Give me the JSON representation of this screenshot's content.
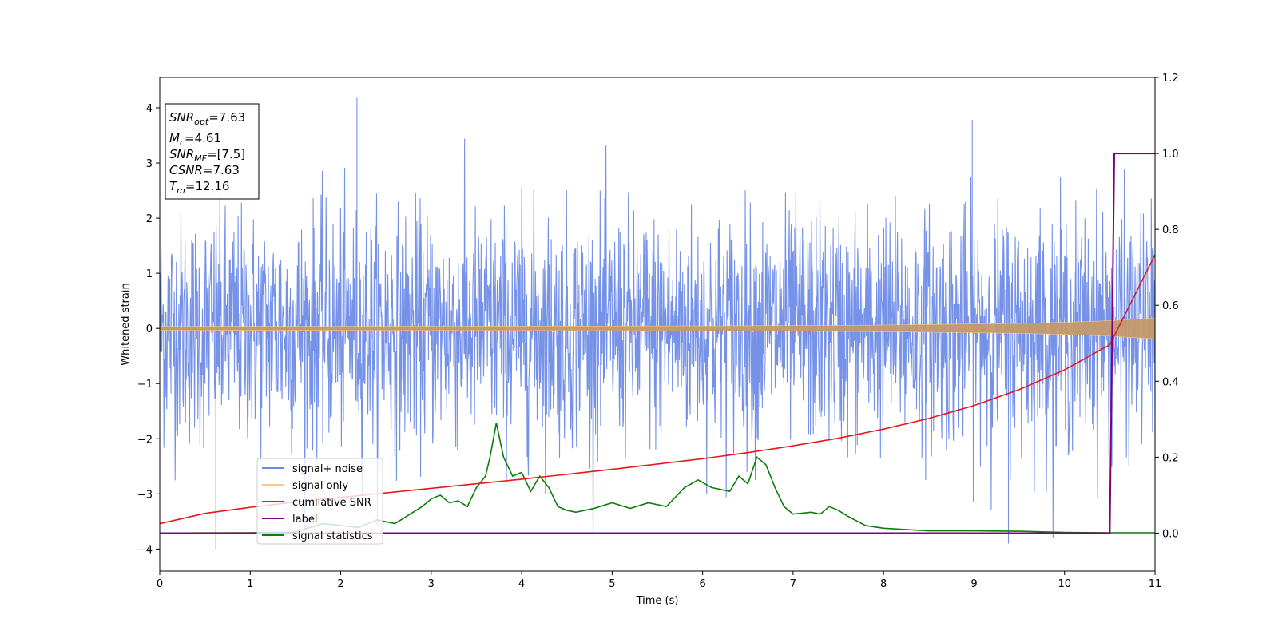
{
  "chart_data": {
    "type": "line",
    "title": "",
    "xlabel": "Time (s)",
    "ylabel": "Whitened strain",
    "xlim": [
      0,
      11
    ],
    "ylim_left": [
      -4.4,
      4.55
    ],
    "ylim_right": [
      -0.1,
      1.2
    ],
    "xticks": [
      "0",
      "1",
      "2",
      "3",
      "4",
      "5",
      "6",
      "7",
      "8",
      "9",
      "10",
      "11"
    ],
    "yticks_left": [
      "4",
      "3",
      "2",
      "1",
      "0",
      "−1",
      "−2",
      "−3",
      "−4"
    ],
    "yticks_right": [
      "1.2",
      "1.0",
      "0.8",
      "0.6",
      "0.4",
      "0.2",
      "0.0"
    ],
    "grid": false,
    "legend_position": "lower-left",
    "legend": [
      "signal+ noise",
      "signal only",
      "cumilative SNR",
      "label",
      "signal statistics"
    ],
    "info_box": {
      "snr_opt_base": "SNR",
      "snr_opt_sub": "opt",
      "snr_opt_val": "=7.63",
      "mc_base": "M",
      "mc_sub": "c",
      "mc_val": "=4.61",
      "snr_mf_base": "SNR",
      "snr_mf_sub": "MF",
      "snr_mf_val": "=[7.5]",
      "csnr_base": "CSNR",
      "csnr_val": "=7.63",
      "tm_base": "T",
      "tm_sub": "m",
      "tm_val": "=12.16"
    },
    "series": [
      {
        "name": "signal+ noise",
        "axis": "left",
        "color": "#6b8ae6",
        "description_envelope": {
          "x": [
            0,
            11
          ],
          "typical_range": [
            -2.2,
            2.4
          ],
          "extremes": [
            [
              0.62,
              -4.0
            ],
            [
              2.18,
              4.18
            ],
            [
              9.38,
              -3.9
            ],
            [
              8.98,
              3.78
            ]
          ]
        }
      },
      {
        "name": "signal only",
        "axis": "left",
        "color": "#f5c88a",
        "amplitude_x": [
          0,
          2,
          4,
          6,
          7,
          8,
          9,
          9.5,
          10,
          10.5,
          11
        ],
        "amplitude_y": [
          0.035,
          0.037,
          0.04,
          0.045,
          0.05,
          0.06,
          0.08,
          0.09,
          0.11,
          0.14,
          0.19
        ]
      },
      {
        "name": "cumilative SNR",
        "axis": "right",
        "color": "#e8161b",
        "x": [
          0,
          0.5,
          1,
          1.5,
          2,
          2.5,
          3,
          3.5,
          4,
          4.5,
          5,
          5.5,
          6,
          6.5,
          7,
          7.5,
          8,
          8.5,
          9,
          9.5,
          10,
          10.5,
          11
        ],
        "y": [
          0.025,
          0.052,
          0.068,
          0.082,
          0.094,
          0.106,
          0.118,
          0.13,
          0.142,
          0.155,
          0.168,
          0.182,
          0.196,
          0.212,
          0.23,
          0.25,
          0.274,
          0.302,
          0.336,
          0.378,
          0.43,
          0.496,
          0.733
        ]
      },
      {
        "name": "label",
        "axis": "right",
        "color": "#800080",
        "x": [
          0,
          10.5,
          10.55,
          11
        ],
        "y": [
          0,
          0,
          1,
          1
        ]
      },
      {
        "name": "signal statistics",
        "axis": "right",
        "color": "#0a7d0a",
        "x": [
          0,
          1,
          1.5,
          1.8,
          2.0,
          2.2,
          2.4,
          2.6,
          2.7,
          2.9,
          3.0,
          3.1,
          3.2,
          3.3,
          3.4,
          3.5,
          3.6,
          3.65,
          3.72,
          3.8,
          3.9,
          4.0,
          4.1,
          4.2,
          4.3,
          4.4,
          4.5,
          4.6,
          4.8,
          5.0,
          5.2,
          5.4,
          5.6,
          5.8,
          5.95,
          6.1,
          6.3,
          6.4,
          6.5,
          6.6,
          6.7,
          6.8,
          6.9,
          7.0,
          7.2,
          7.3,
          7.4,
          7.5,
          7.6,
          7.8,
          8.0,
          8.5,
          9.0,
          9.5,
          10.0,
          10.5,
          11
        ],
        "y": [
          0.0,
          0.001,
          0.003,
          0.025,
          0.02,
          0.015,
          0.035,
          0.025,
          0.04,
          0.07,
          0.09,
          0.1,
          0.08,
          0.085,
          0.07,
          0.12,
          0.15,
          0.2,
          0.29,
          0.2,
          0.15,
          0.16,
          0.11,
          0.15,
          0.12,
          0.07,
          0.06,
          0.055,
          0.065,
          0.08,
          0.065,
          0.08,
          0.07,
          0.12,
          0.14,
          0.12,
          0.11,
          0.15,
          0.13,
          0.2,
          0.18,
          0.12,
          0.07,
          0.05,
          0.055,
          0.05,
          0.07,
          0.06,
          0.045,
          0.02,
          0.013,
          0.006,
          0.006,
          0.005,
          0.002,
          0.001,
          0.001
        ]
      }
    ]
  }
}
